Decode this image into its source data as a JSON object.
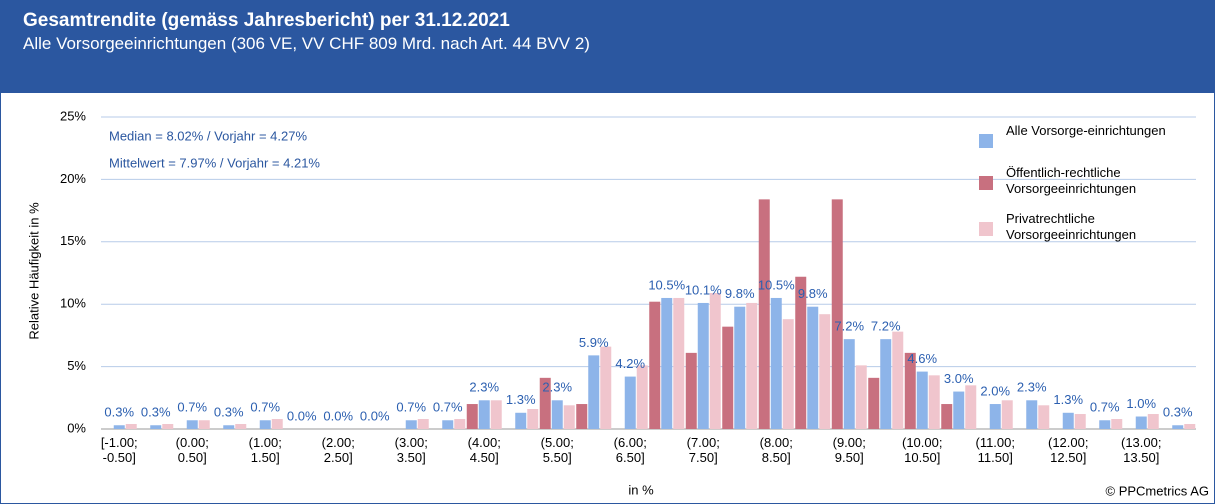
{
  "header": {
    "title": "Gesamtrendite (gemäss Jahresbericht) per 31.12.2021",
    "subtitle": "Alle Vorsorgeeinrichtungen (306 VE, VV CHF 809 Mrd. nach Art. 44 BVV 2)"
  },
  "footer": "© PPCmetrics AG",
  "chart_data": {
    "type": "bar",
    "x_label": "in %",
    "y_label": "Relative Häufigkeit in %",
    "annotations": [
      "Median = 8.02% / Vorjahr = 4.27%",
      "Mittelwert = 7.97% / Vorjahr = 4.21%"
    ],
    "categories": [
      "[-1.00; -0.50]",
      null,
      "(0.00; 0.50]",
      null,
      "(1.00; 1.50]",
      null,
      "(2.00; 2.50]",
      null,
      "(3.00; 3.50]",
      null,
      "(4.00; 4.50]",
      null,
      "(5.00; 5.50]",
      null,
      "(6.00; 6.50]",
      null,
      "(7.00; 7.50]",
      null,
      "(8.00; 8.50]",
      null,
      "(9.00; 9.50]",
      null,
      "(10.00; 10.50]",
      null,
      "(11.00; 11.50]",
      null,
      "(12.00; 12.50]",
      null,
      "(13.00; 13.50]",
      null
    ],
    "series": [
      {
        "name": "Alle Vorsorge-einrichtungen",
        "color": "#8db4e9",
        "values": [
          0.3,
          0.3,
          0.7,
          0.3,
          0.7,
          0.0,
          0.0,
          0.0,
          0.7,
          0.7,
          2.3,
          1.3,
          2.3,
          5.9,
          4.2,
          10.5,
          10.1,
          9.8,
          10.5,
          9.8,
          7.2,
          7.2,
          4.6,
          3.0,
          2.0,
          2.3,
          1.3,
          0.7,
          1.0,
          0.3
        ],
        "value_labels": [
          "0.3%",
          "0.3%",
          "0.7%",
          "0.3%",
          "0.7%",
          "0.0%",
          "0.0%",
          "0.0%",
          "0.7%",
          "0.7%",
          "2.3%",
          "1.3%",
          "2.3%",
          "5.9%",
          "4.2%",
          "10.5%",
          "10.1%",
          "9.8%",
          "10.5%",
          "9.8%",
          "7.2%",
          "7.2%",
          "4.6%",
          "3.0%",
          "2.0%",
          "2.3%",
          "1.3%",
          "0.7%",
          "1.0%",
          "0.3%"
        ]
      },
      {
        "name": "Öffentlich-rechtliche Vorsorgeeinrichtungen",
        "color": "#c8707f",
        "values": [
          0,
          0,
          0,
          0,
          0,
          0,
          0,
          0,
          0,
          0,
          2.0,
          0,
          4.1,
          2.0,
          0,
          10.2,
          6.1,
          8.2,
          18.4,
          12.2,
          18.4,
          4.1,
          6.1,
          2.0,
          0,
          0,
          0,
          0,
          0,
          0
        ]
      },
      {
        "name": "Privatrechtliche Vorsorgeeinrichtungen",
        "color": "#f0c5cd",
        "values": [
          0.4,
          0.4,
          0.7,
          0.4,
          0.8,
          0,
          0,
          0,
          0.8,
          0.8,
          2.3,
          1.6,
          1.9,
          6.6,
          5.1,
          10.5,
          10.9,
          10.1,
          8.8,
          9.2,
          5.1,
          7.8,
          4.3,
          3.5,
          2.3,
          1.9,
          1.2,
          0.8,
          1.2,
          0.4
        ]
      }
    ],
    "ylim": [
      0,
      25
    ],
    "yticks": [
      {
        "value": 0,
        "label": "0%"
      },
      {
        "value": 5,
        "label": "5%"
      },
      {
        "value": 10,
        "label": "10%"
      },
      {
        "value": 15,
        "label": "15%"
      },
      {
        "value": 20,
        "label": "20%"
      },
      {
        "value": 25,
        "label": "25%"
      }
    ],
    "grid": true,
    "legend": "top-right"
  }
}
